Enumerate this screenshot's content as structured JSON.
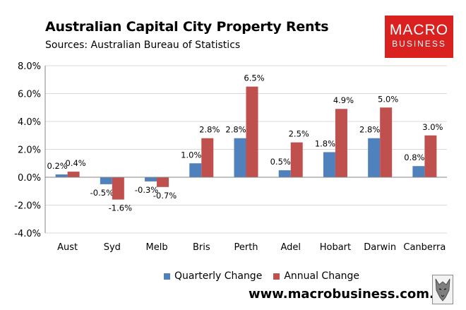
{
  "colors": {
    "quarterly": "#4f81bd",
    "annual": "#c0504d",
    "logo_bg": "#d9211f",
    "axis": "#868686",
    "grid": "#d9d9d9"
  },
  "branding": {
    "logo_line1": "MACRO",
    "logo_line2": "BUSINESS",
    "url": "www.macrobusiness.com.au",
    "mascot_icon": "wolf-icon"
  },
  "chart_data": {
    "type": "bar",
    "title": "Australian Capital City Property Rents",
    "subtitle": "Sources: Australian Bureau of Statistics",
    "xlabel": "",
    "ylabel": "",
    "ylim": [
      -4,
      8
    ],
    "yticks": [
      8,
      6,
      4,
      2,
      0,
      -2,
      -4
    ],
    "ytick_labels": [
      "8.0%",
      "6.0%",
      "4.0%",
      "2.0%",
      "0.0%",
      "-2.0%",
      "-4.0%"
    ],
    "grid": true,
    "legend_position": "bottom",
    "categories": [
      "Aust",
      "Syd",
      "Melb",
      "Bris",
      "Perth",
      "Adel",
      "Hobart",
      "Darwin",
      "Canberra"
    ],
    "series": [
      {
        "name": "Quarterly Change",
        "values": [
          0.2,
          -0.5,
          -0.3,
          1.0,
          2.8,
          0.5,
          1.8,
          2.8,
          0.8
        ],
        "labels": [
          "0.2%",
          "-0.5%",
          "-0.3%",
          "1.0%",
          "2.8%",
          "0.5%",
          "1.8%",
          "2.8%",
          "0.8%"
        ]
      },
      {
        "name": "Annual Change",
        "values": [
          0.4,
          -1.6,
          -0.7,
          2.8,
          6.5,
          2.5,
          4.9,
          5.0,
          3.0
        ],
        "labels": [
          "0.4%",
          "-1.6%",
          "-0.7%",
          "2.8%",
          "6.5%",
          "2.5%",
          "4.9%",
          "5.0%",
          "3.0%"
        ]
      }
    ]
  }
}
